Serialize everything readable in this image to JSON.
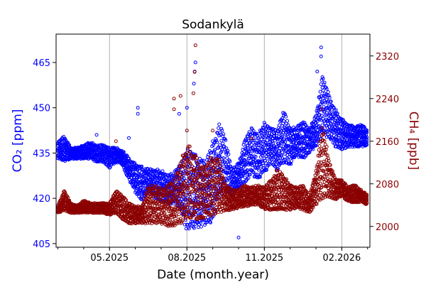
{
  "chart_data": {
    "type": "scatter",
    "title": "Sodankylä",
    "xlabel": "Date (month.year)",
    "x_units": "months since 01.2025 (2.0 = 1 March 2025)",
    "xlim": [
      1.93,
      14.09
    ],
    "xticks": [
      {
        "value": 4,
        "label": "05.2025"
      },
      {
        "value": 7,
        "label": "08.2025"
      },
      {
        "value": 10,
        "label": "11.2025"
      },
      {
        "value": 13,
        "label": "02.2026"
      }
    ],
    "minor_xticks": [
      2,
      3,
      4,
      5,
      6,
      7,
      8,
      9,
      10,
      11,
      12,
      13,
      14
    ],
    "grid": "vertical lines at major x ticks",
    "colors": {
      "co2": "#0000ff",
      "ch4": "#8b0000",
      "grid": "#b0b0b0"
    },
    "series": [
      {
        "name": "CO2",
        "ylabel": "CO₂ [ppm]",
        "axis": "left",
        "ylim": [
          403.8,
          474.4
        ],
        "yticks": [
          405,
          420,
          435,
          450,
          465
        ],
        "envelope": [
          [
            2.0,
            433,
            439
          ],
          [
            2.25,
            432,
            441
          ],
          [
            2.5,
            433,
            437
          ],
          [
            2.75,
            433,
            437
          ],
          [
            3.0,
            433,
            438
          ],
          [
            3.25,
            433,
            439
          ],
          [
            3.5,
            432,
            438
          ],
          [
            3.75,
            432,
            438
          ],
          [
            4.0,
            430,
            437
          ],
          [
            4.25,
            432,
            437
          ],
          [
            4.5,
            431,
            436
          ],
          [
            4.75,
            426,
            434
          ],
          [
            5.0,
            422,
            432
          ],
          [
            5.25,
            419,
            431
          ],
          [
            5.5,
            422,
            430
          ],
          [
            5.75,
            420,
            430
          ],
          [
            6.0,
            419,
            430
          ],
          [
            6.25,
            418,
            428
          ],
          [
            6.5,
            418,
            429
          ],
          [
            6.75,
            416,
            432
          ],
          [
            7.0,
            408,
            438
          ],
          [
            7.25,
            410,
            436
          ],
          [
            7.5,
            410,
            434
          ],
          [
            7.75,
            411,
            433
          ],
          [
            8.0,
            412,
            440
          ],
          [
            8.25,
            420,
            446
          ],
          [
            8.5,
            422,
            440
          ],
          [
            8.75,
            420,
            430
          ],
          [
            9.0,
            423,
            432
          ],
          [
            9.25,
            425,
            440
          ],
          [
            9.5,
            428,
            444
          ],
          [
            9.75,
            426,
            442
          ],
          [
            10.0,
            428,
            446
          ],
          [
            10.25,
            432,
            444
          ],
          [
            10.5,
            429,
            443
          ],
          [
            10.75,
            432,
            450
          ],
          [
            11.0,
            431,
            444
          ],
          [
            11.25,
            434,
            444
          ],
          [
            11.5,
            433,
            446
          ],
          [
            11.75,
            435,
            444
          ],
          [
            12.0,
            437,
            448
          ],
          [
            12.25,
            440,
            462
          ],
          [
            12.5,
            440,
            455
          ],
          [
            12.75,
            437,
            450
          ],
          [
            13.0,
            436,
            447
          ],
          [
            13.25,
            437,
            445
          ],
          [
            13.5,
            437,
            444
          ],
          [
            13.75,
            437,
            445
          ],
          [
            14.0,
            437,
            443
          ]
        ],
        "outliers": [
          [
            5.1,
            450
          ],
          [
            5.1,
            448
          ],
          [
            6.7,
            448
          ],
          [
            7.0,
            450
          ],
          [
            7.3,
            462
          ],
          [
            7.33,
            465
          ],
          [
            7.27,
            458
          ],
          [
            12.2,
            470
          ],
          [
            12.2,
            467
          ],
          [
            12.05,
            462
          ],
          [
            9.0,
            407
          ],
          [
            4.75,
            440
          ],
          [
            3.5,
            441
          ]
        ]
      },
      {
        "name": "CH4",
        "ylabel": "CH₄ [ppb]",
        "axis": "right",
        "ylim": [
          1961,
          2361
        ],
        "yticks": [
          2000,
          2080,
          2160,
          2240,
          2320
        ],
        "envelope": [
          [
            2.0,
            2025,
            2040
          ],
          [
            2.25,
            2030,
            2070
          ],
          [
            2.5,
            2025,
            2045
          ],
          [
            2.75,
            2025,
            2040
          ],
          [
            3.0,
            2025,
            2050
          ],
          [
            3.25,
            2025,
            2045
          ],
          [
            3.5,
            2025,
            2045
          ],
          [
            3.75,
            2025,
            2045
          ],
          [
            4.0,
            2020,
            2045
          ],
          [
            4.25,
            2025,
            2070
          ],
          [
            4.5,
            2010,
            2060
          ],
          [
            4.75,
            2005,
            2045
          ],
          [
            5.0,
            2005,
            2040
          ],
          [
            5.25,
            2005,
            2040
          ],
          [
            5.5,
            2005,
            2080
          ],
          [
            5.75,
            2005,
            2080
          ],
          [
            6.0,
            2005,
            2075
          ],
          [
            6.25,
            2000,
            2080
          ],
          [
            6.5,
            1995,
            2090
          ],
          [
            6.75,
            2005,
            2130
          ],
          [
            7.0,
            2010,
            2160
          ],
          [
            7.25,
            2010,
            2150
          ],
          [
            7.5,
            2015,
            2120
          ],
          [
            7.75,
            2015,
            2120
          ],
          [
            8.0,
            2020,
            2140
          ],
          [
            8.25,
            2025,
            2130
          ],
          [
            8.5,
            2030,
            2080
          ],
          [
            8.75,
            2030,
            2070
          ],
          [
            9.0,
            2035,
            2070
          ],
          [
            9.25,
            2035,
            2080
          ],
          [
            9.5,
            2040,
            2075
          ],
          [
            9.75,
            2040,
            2080
          ],
          [
            10.0,
            2030,
            2075
          ],
          [
            10.25,
            2030,
            2090
          ],
          [
            10.5,
            2025,
            2110
          ],
          [
            10.75,
            2030,
            2100
          ],
          [
            11.0,
            2030,
            2080
          ],
          [
            11.25,
            2035,
            2075
          ],
          [
            11.5,
            2030,
            2080
          ],
          [
            11.75,
            2025,
            2060
          ],
          [
            12.0,
            2040,
            2110
          ],
          [
            12.25,
            2050,
            2200
          ],
          [
            12.5,
            2050,
            2130
          ],
          [
            12.75,
            2050,
            2090
          ],
          [
            13.0,
            2055,
            2090
          ],
          [
            13.25,
            2045,
            2075
          ],
          [
            13.5,
            2045,
            2080
          ],
          [
            13.75,
            2045,
            2070
          ],
          [
            14.0,
            2040,
            2060
          ]
        ],
        "outliers": [
          [
            7.33,
            2340
          ],
          [
            7.3,
            2290
          ],
          [
            7.25,
            2250
          ],
          [
            6.5,
            2240
          ],
          [
            6.5,
            2220
          ],
          [
            6.75,
            2245
          ],
          [
            7.0,
            2180
          ],
          [
            12.2,
            2220
          ],
          [
            8.0,
            2180
          ],
          [
            9.5,
            2165
          ],
          [
            4.25,
            2160
          ]
        ]
      }
    ]
  }
}
